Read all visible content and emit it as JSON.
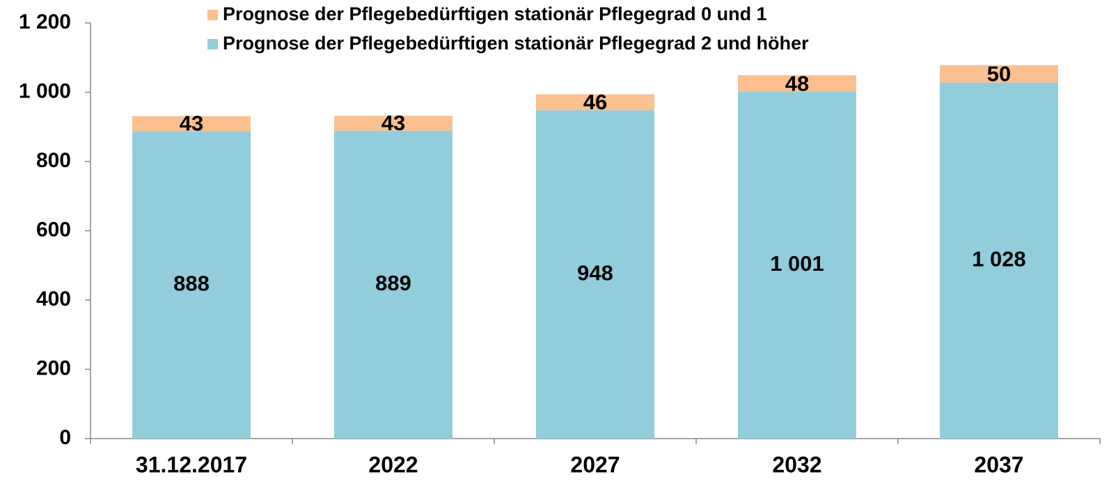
{
  "chart_data": {
    "type": "bar",
    "stacked": true,
    "categories": [
      "31.12.2017",
      "2022",
      "2027",
      "2032",
      "2037"
    ],
    "series": [
      {
        "name": "Prognose der Pflegebedürftigen stationär Pflegegrad 0 und 1",
        "color": "#fac090",
        "values": [
          43,
          43,
          46,
          48,
          50
        ]
      },
      {
        "name": "Prognose der Pflegebedürftigen stationär Pflegegrad 2 und höher",
        "color": "#92cddc",
        "values": [
          888,
          889,
          948,
          1001,
          1028
        ],
        "value_labels": [
          "888",
          "889",
          "948",
          "1 001",
          "1 028"
        ]
      }
    ],
    "ylim": [
      0,
      1200
    ],
    "yticks": [
      0,
      200,
      400,
      600,
      800,
      {
        "value": 1000,
        "label": "1 000"
      },
      {
        "value": 1200,
        "label": "1 200"
      }
    ],
    "grid": false,
    "legend": "top"
  }
}
